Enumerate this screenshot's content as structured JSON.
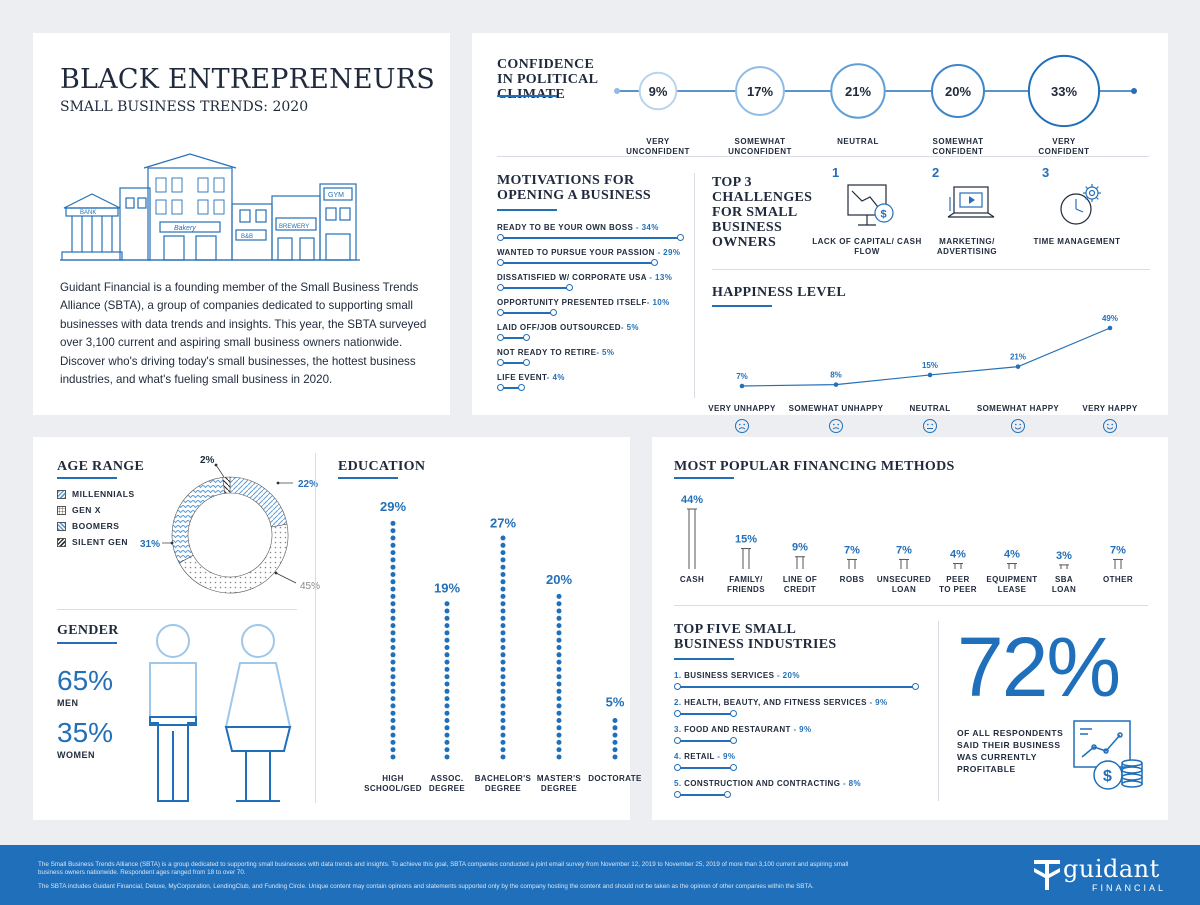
{
  "intro": {
    "title": "BLACK ENTREPRENEURS",
    "subtitle": "SMALL BUSINESS TRENDS: 2020",
    "paragraph": "Guidant Financial is a founding member of the Small Business Trends Alliance (SBTA), a group of companies dedicated to supporting small businesses with data trends and insights. This year, the SBTA surveyed over 3,100 current and aspiring small business owners nationwide. Discover who's driving today's small businesses, the hottest business industries, and what's fueling small business in 2020.",
    "sign_labels": [
      "BANK",
      "Bakery",
      "B&B",
      "BREWERY",
      "GYM"
    ]
  },
  "confidence": {
    "title": "CONFIDENCE IN POLITICAL CLIMATE",
    "items": [
      {
        "value": 9,
        "label": "9%",
        "caption": "VERY UNCONFIDENT"
      },
      {
        "value": 17,
        "label": "17%",
        "caption": "SOMEWHAT UNCONFIDENT"
      },
      {
        "value": 21,
        "label": "21%",
        "caption": "NEUTRAL"
      },
      {
        "value": 20,
        "label": "20%",
        "caption": "SOMEWHAT CONFIDENT"
      },
      {
        "value": 33,
        "label": "33%",
        "caption": "VERY CONFIDENT"
      }
    ]
  },
  "motivations": {
    "title": "MOTIVATIONS FOR OPENING A BUSINESS",
    "items": [
      {
        "label": "READY TO BE YOUR OWN BOSS",
        "value": 34,
        "pct": "34%"
      },
      {
        "label": "WANTED TO PURSUE YOUR PASSION",
        "value": 29,
        "pct": "29%"
      },
      {
        "label": "DISSATISFIED W/ CORPORATE USA",
        "value": 13,
        "pct": "13%"
      },
      {
        "label": "OPPORTUNITY PRESENTED ITSELF",
        "value": 10,
        "pct": "10%"
      },
      {
        "label": "LAID OFF/JOB OUTSOURCED",
        "value": 5,
        "pct": "5%"
      },
      {
        "label": "NOT READY TO RETIRE",
        "value": 5,
        "pct": "5%"
      },
      {
        "label": "LIFE EVENT",
        "value": 4,
        "pct": "4%"
      }
    ]
  },
  "challenges": {
    "title": "TOP 3 CHALLENGES FOR SMALL BUSINESS OWNERS",
    "items": [
      {
        "rank": "1",
        "label": "LACK OF CAPITAL/ CASH FLOW",
        "icon": "chart-money-icon"
      },
      {
        "rank": "2",
        "label": "MARKETING/ ADVERTISING",
        "icon": "computer-ad-icon"
      },
      {
        "rank": "3",
        "label": "TIME MANAGEMENT",
        "icon": "clock-gear-icon"
      }
    ]
  },
  "happiness": {
    "title": "HAPPINESS LEVEL",
    "items": [
      {
        "value": 7,
        "pct": "7%",
        "label": "VERY UNHAPPY",
        "face": "sad"
      },
      {
        "value": 8,
        "pct": "8%",
        "label": "SOMEWHAT UNHAPPY",
        "face": "sad"
      },
      {
        "value": 15,
        "pct": "15%",
        "label": "NEUTRAL",
        "face": "neutral"
      },
      {
        "value": 21,
        "pct": "21%",
        "label": "SOMEWHAT HAPPY",
        "face": "happy"
      },
      {
        "value": 49,
        "pct": "49%",
        "label": "VERY HAPPY",
        "face": "happy"
      }
    ]
  },
  "age": {
    "title": "AGE RANGE",
    "legend": [
      {
        "name": "MILLENNIALS",
        "value": 22,
        "pct": "22%"
      },
      {
        "name": "GEN X",
        "value": 45,
        "pct": "45%"
      },
      {
        "name": "BOOMERS",
        "value": 31,
        "pct": "31%"
      },
      {
        "name": "SILENT GEN",
        "value": 2,
        "pct": "2%"
      }
    ]
  },
  "gender": {
    "title": "GENDER",
    "men_pct": "65%",
    "men_label": "MEN",
    "women_pct": "35%",
    "women_label": "WOMEN"
  },
  "education": {
    "title": "EDUCATION",
    "items": [
      {
        "value": 29,
        "pct": "29%",
        "label": "HIGH SCHOOL/GED"
      },
      {
        "value": 19,
        "pct": "19%",
        "label": "ASSOC. DEGREE"
      },
      {
        "value": 27,
        "pct": "27%",
        "label": "BACHELOR'S DEGREE"
      },
      {
        "value": 20,
        "pct": "20%",
        "label": "MASTER'S DEGREE"
      },
      {
        "value": 5,
        "pct": "5%",
        "label": "DOCTORATE"
      }
    ]
  },
  "financing": {
    "title": "MOST POPULAR FINANCING METHODS",
    "items": [
      {
        "value": 44,
        "pct": "44%",
        "label": "CASH"
      },
      {
        "value": 15,
        "pct": "15%",
        "label": "FAMILY/ FRIENDS"
      },
      {
        "value": 9,
        "pct": "9%",
        "label": "LINE OF CREDIT"
      },
      {
        "value": 7,
        "pct": "7%",
        "label": "ROBS"
      },
      {
        "value": 7,
        "pct": "7%",
        "label": "UNSECURED LOAN"
      },
      {
        "value": 4,
        "pct": "4%",
        "label": "PEER TO PEER"
      },
      {
        "value": 4,
        "pct": "4%",
        "label": "EQUIPMENT LEASE"
      },
      {
        "value": 3,
        "pct": "3%",
        "label": "SBA LOAN"
      },
      {
        "value": 7,
        "pct": "7%",
        "label": "OTHER"
      }
    ]
  },
  "industries": {
    "title": "TOP FIVE SMALL BUSINESS INDUSTRIES",
    "items": [
      {
        "num": "1.",
        "label": "BUSINESS SERVICES",
        "value": 20,
        "pct": "20%"
      },
      {
        "num": "2.",
        "label": "HEALTH, BEAUTY, AND FITNESS SERVICES",
        "value": 9,
        "pct": "9%"
      },
      {
        "num": "3.",
        "label": "FOOD AND RESTAURANT",
        "value": 9,
        "pct": "9%"
      },
      {
        "num": "4.",
        "label": "RETAIL",
        "value": 9,
        "pct": "9%"
      },
      {
        "num": "5.",
        "label": "CONSTRUCTION AND CONTRACTING",
        "value": 8,
        "pct": "8%"
      }
    ]
  },
  "profitable": {
    "big": "72%",
    "text": "OF ALL RESPONDENTS SAID THEIR BUSINESS WAS CURRENTLY PROFITABLE"
  },
  "footer": {
    "line1": "The Small Business Trends Alliance (SBTA) is a group dedicated to supporting small businesses with data trends and insights. To achieve this goal, SBTA companies conducted a joint email survey from November 12, 2019 to November 25, 2019 of more than 3,100 current and aspiring small business owners nationwide. Respondent ages ranged from 18 to over 70.",
    "line2": "The SBTA includes Guidant Financial, Deluxe, MyCorporation, LendingClub, and Funding Circle. Unique content may contain opinions and statements supported only by the company hosting the content and should not be taken as the opinion of other companies within the SBTA.",
    "brand": "guidant",
    "brand_sub": "FINANCIAL"
  },
  "chart_data": [
    {
      "type": "line",
      "title": "HAPPINESS LEVEL",
      "categories": [
        "VERY UNHAPPY",
        "SOMEWHAT UNHAPPY",
        "NEUTRAL",
        "SOMEWHAT HAPPY",
        "VERY HAPPY"
      ],
      "values": [
        7,
        8,
        15,
        21,
        49
      ]
    },
    {
      "type": "pie",
      "title": "AGE RANGE",
      "categories": [
        "MILLENNIALS",
        "GEN X",
        "BOOMERS",
        "SILENT GEN"
      ],
      "values": [
        22,
        45,
        31,
        2
      ]
    },
    {
      "type": "bar",
      "title": "EDUCATION",
      "categories": [
        "HIGH SCHOOL/GED",
        "ASSOC. DEGREE",
        "BACHELOR'S DEGREE",
        "MASTER'S DEGREE",
        "DOCTORATE"
      ],
      "values": [
        29,
        19,
        27,
        20,
        5
      ]
    },
    {
      "type": "bar",
      "title": "MOST POPULAR FINANCING METHODS",
      "categories": [
        "CASH",
        "FAMILY/ FRIENDS",
        "LINE OF CREDIT",
        "ROBS",
        "UNSECURED LOAN",
        "PEER TO PEER",
        "EQUIPMENT LEASE",
        "SBA LOAN",
        "OTHER"
      ],
      "values": [
        44,
        15,
        9,
        7,
        7,
        4,
        4,
        3,
        7
      ]
    },
    {
      "type": "bar",
      "title": "MOTIVATIONS FOR OPENING A BUSINESS",
      "categories": [
        "READY TO BE YOUR OWN BOSS",
        "WANTED TO PURSUE YOUR PASSION",
        "DISSATISFIED W/ CORPORATE USA",
        "OPPORTUNITY PRESENTED ITSELF",
        "LAID OFF/JOB OUTSOURCED",
        "NOT READY TO RETIRE",
        "LIFE EVENT"
      ],
      "values": [
        34,
        29,
        13,
        10,
        5,
        5,
        4
      ]
    },
    {
      "type": "bar",
      "title": "TOP FIVE SMALL BUSINESS INDUSTRIES",
      "categories": [
        "BUSINESS SERVICES",
        "HEALTH, BEAUTY, AND FITNESS SERVICES",
        "FOOD AND RESTAURANT",
        "RETAIL",
        "CONSTRUCTION AND CONTRACTING"
      ],
      "values": [
        20,
        9,
        9,
        9,
        8
      ]
    },
    {
      "type": "bar",
      "title": "CONFIDENCE IN POLITICAL CLIMATE",
      "categories": [
        "VERY UNCONFIDENT",
        "SOMEWHAT UNCONFIDENT",
        "NEUTRAL",
        "SOMEWHAT CONFIDENT",
        "VERY CONFIDENT"
      ],
      "values": [
        9,
        17,
        21,
        20,
        33
      ]
    }
  ]
}
